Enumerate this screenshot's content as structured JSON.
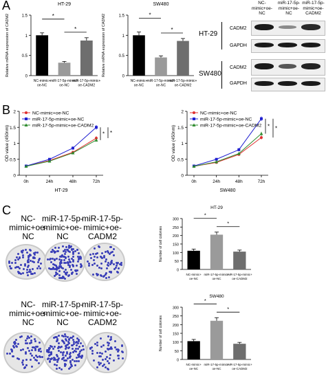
{
  "panels": {
    "a": "A",
    "b": "B",
    "c": "C"
  },
  "colors": {
    "bar_black": "#000000",
    "bar_gray_mid": "#9a9a9a",
    "bar_gray_light": "#6e6e6e",
    "line_red": "#e03030",
    "line_blue": "#2020d0",
    "line_green": "#2e8b2e",
    "colony": "#3a3fb8"
  },
  "blot": {
    "lanes": [
      "NC-mimic+oe-NC",
      "miR-17-5p-mimic+oe-NC",
      "miR-17-5p-mimic+oe-CADM2"
    ],
    "groups": [
      {
        "name": "HT-29",
        "rows": [
          "CADM2",
          "GAPDH"
        ]
      },
      {
        "name": "SW480",
        "rows": [
          "CADM2",
          "GAPDH"
        ]
      }
    ]
  },
  "dishes": {
    "groups": [
      "HT-29",
      "SW480"
    ],
    "labels": [
      "NC-mimic+oe-NC",
      "miR-17-5p-mimic+oe-NC",
      "miR-17-5p-mimic+oe-CADM2"
    ]
  },
  "chart_data": [
    {
      "id": "A1",
      "type": "bar",
      "title": "HT-29",
      "ylabel": "Relative mRNA expression of CADM2",
      "categories": [
        "NC-mimic+oe-NC",
        "miR-17-5p-mimic+oe-NC",
        "miR-17-5p-mimic+oe-CADM2"
      ],
      "values": [
        1.0,
        0.32,
        0.87
      ],
      "errors": [
        0.06,
        0.03,
        0.07
      ],
      "ylim": [
        0,
        1.5
      ],
      "yticks": [
        0,
        0.5,
        1.0,
        1.5
      ],
      "significance": [
        [
          "NC-mimic+oe-NC",
          "miR-17-5p-mimic+oe-NC",
          "*"
        ],
        [
          "miR-17-5p-mimic+oe-NC",
          "miR-17-5p-mimic+oe-CADM2",
          "*"
        ]
      ]
    },
    {
      "id": "A2",
      "type": "bar",
      "title": "SW480",
      "ylabel": "Relative mRNA expression of CADM2",
      "categories": [
        "NC-mimic+oe-NC",
        "miR-17-5p-mimic+oe-NC",
        "miR-17-5p-mimic+oe-CADM2"
      ],
      "values": [
        1.0,
        0.45,
        0.86
      ],
      "errors": [
        0.08,
        0.04,
        0.06
      ],
      "ylim": [
        0,
        1.5
      ],
      "yticks": [
        0,
        0.5,
        1.0,
        1.5
      ],
      "significance": [
        [
          "NC-mimic+oe-NC",
          "miR-17-5p-mimic+oe-NC",
          "*"
        ],
        [
          "miR-17-5p-mimic+oe-NC",
          "miR-17-5p-mimic+oe-CADM2",
          "*"
        ]
      ]
    },
    {
      "id": "B1",
      "type": "line",
      "xlabel": "HT-29",
      "ylabel": "OD value (450nm)",
      "x": [
        "0h",
        "24h",
        "48h",
        "72h"
      ],
      "ylim": [
        0,
        2.0
      ],
      "yticks": [
        0,
        0.5,
        1.0,
        1.5,
        2.0
      ],
      "legend": "top-left",
      "series": [
        {
          "name": "NC-mimic+oe-NC",
          "values": [
            0.28,
            0.46,
            0.72,
            1.16
          ],
          "errors": [
            0.02,
            0.03,
            0.04,
            0.06
          ]
        },
        {
          "name": "miR-17-5p-mimic+oe-NC",
          "values": [
            0.29,
            0.5,
            0.85,
            1.5
          ],
          "errors": [
            0.02,
            0.03,
            0.05,
            0.07
          ]
        },
        {
          "name": "miR-17-5p-mimic+oe-CADM2",
          "values": [
            0.28,
            0.44,
            0.7,
            1.1
          ],
          "errors": [
            0.02,
            0.03,
            0.04,
            0.05
          ]
        }
      ],
      "significance": [
        "*",
        "*"
      ]
    },
    {
      "id": "B2",
      "type": "line",
      "xlabel": "SW480",
      "ylabel": "OD value (450nm)",
      "x": [
        "0h",
        "24h",
        "48h",
        "72h"
      ],
      "ylim": [
        0,
        2.0
      ],
      "yticks": [
        0,
        0.5,
        1.0,
        1.5,
        2.0
      ],
      "legend": "top-left",
      "series": [
        {
          "name": "NC-mimic+oe-NC",
          "values": [
            0.28,
            0.4,
            0.65,
            1.18
          ],
          "errors": [
            0.02,
            0.03,
            0.04,
            0.06
          ]
        },
        {
          "name": "miR-17-5p-mimic+oe-NC",
          "values": [
            0.29,
            0.5,
            0.8,
            1.77
          ],
          "errors": [
            0.02,
            0.03,
            0.05,
            0.07
          ]
        },
        {
          "name": "miR-17-5p-mimic+oe-CADM2",
          "values": [
            0.28,
            0.42,
            0.68,
            1.3
          ],
          "errors": [
            0.02,
            0.03,
            0.04,
            0.06
          ]
        }
      ],
      "significance": [
        "*",
        "*"
      ]
    },
    {
      "id": "C1",
      "type": "bar",
      "title": "HT-29",
      "ylabel": "Number of cell colonies",
      "categories": [
        "NC-mimic+oe-NC",
        "miR-17-5p-mimic+oe-NC",
        "miR-17-5p-mimic+oe-CADM2"
      ],
      "values": [
        110,
        205,
        105
      ],
      "errors": [
        10,
        15,
        9
      ],
      "ylim": [
        0,
        300
      ],
      "yticks": [
        0,
        50,
        100,
        150,
        200,
        250,
        300
      ],
      "significance": [
        [
          "NC-mimic+oe-NC",
          "miR-17-5p-mimic+oe-NC",
          "*"
        ],
        [
          "miR-17-5p-mimic+oe-NC",
          "miR-17-5p-mimic+oe-CADM2",
          "*"
        ]
      ]
    },
    {
      "id": "C2",
      "type": "bar",
      "title": "SW480",
      "ylabel": "Number of cell colonies",
      "categories": [
        "NC-mimic+oe-NC",
        "miR-17-5p-mimic+oe-NC",
        "miR-17-5p-mimic+oe-CADM2"
      ],
      "values": [
        105,
        222,
        90
      ],
      "errors": [
        10,
        18,
        8
      ],
      "ylim": [
        0,
        300
      ],
      "yticks": [
        0,
        50,
        100,
        150,
        200,
        250,
        300
      ],
      "significance": [
        [
          "NC-mimic+oe-NC",
          "miR-17-5p-mimic+oe-NC",
          "*"
        ],
        [
          "miR-17-5p-mimic+oe-NC",
          "miR-17-5p-mimic+oe-CADM2",
          "*"
        ]
      ]
    }
  ]
}
